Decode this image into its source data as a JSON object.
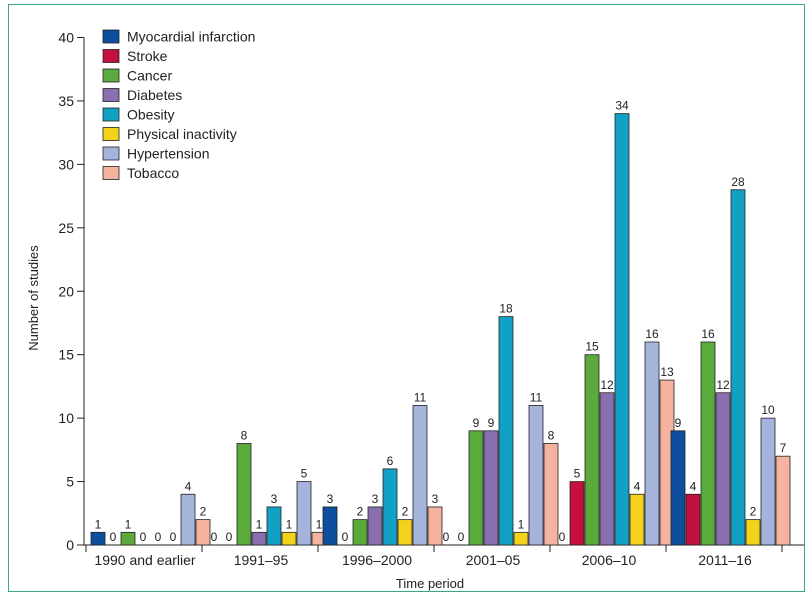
{
  "chart_data": {
    "type": "bar",
    "categories": [
      "1990 and earlier",
      "1991–95",
      "1996–2000",
      "2001–05",
      "2006–10",
      "2011–16"
    ],
    "series": [
      {
        "name": "Myocardial infarction",
        "color": "#0d4f9c",
        "values": [
          1,
          0,
          3,
          0,
          0,
          9
        ]
      },
      {
        "name": "Stroke",
        "color": "#c4103c",
        "values": [
          0,
          0,
          0,
          0,
          5,
          4
        ]
      },
      {
        "name": "Cancer",
        "color": "#5aab3c",
        "values": [
          1,
          8,
          2,
          9,
          15,
          16
        ]
      },
      {
        "name": "Diabetes",
        "color": "#8a6fb0",
        "values": [
          0,
          1,
          3,
          9,
          12,
          12
        ]
      },
      {
        "name": "Obesity",
        "color": "#12a0c4",
        "values": [
          0,
          3,
          6,
          18,
          34,
          28
        ]
      },
      {
        "name": "Physical inactivity",
        "color": "#f2d21b",
        "values": [
          0,
          1,
          2,
          1,
          4,
          2
        ]
      },
      {
        "name": "Hypertension",
        "color": "#a6b4dc",
        "values": [
          4,
          5,
          11,
          11,
          16,
          10
        ]
      },
      {
        "name": "Tobacco",
        "color": "#f5b39f",
        "values": [
          2,
          1,
          3,
          8,
          13,
          7
        ]
      }
    ],
    "xlabel": "Time period",
    "ylabel": "Number of studies",
    "ylim": [
      0,
      40
    ],
    "yticks": [
      0,
      5,
      10,
      15,
      20,
      25,
      30,
      35,
      40
    ],
    "grid": false,
    "legend_position": "top-left"
  }
}
